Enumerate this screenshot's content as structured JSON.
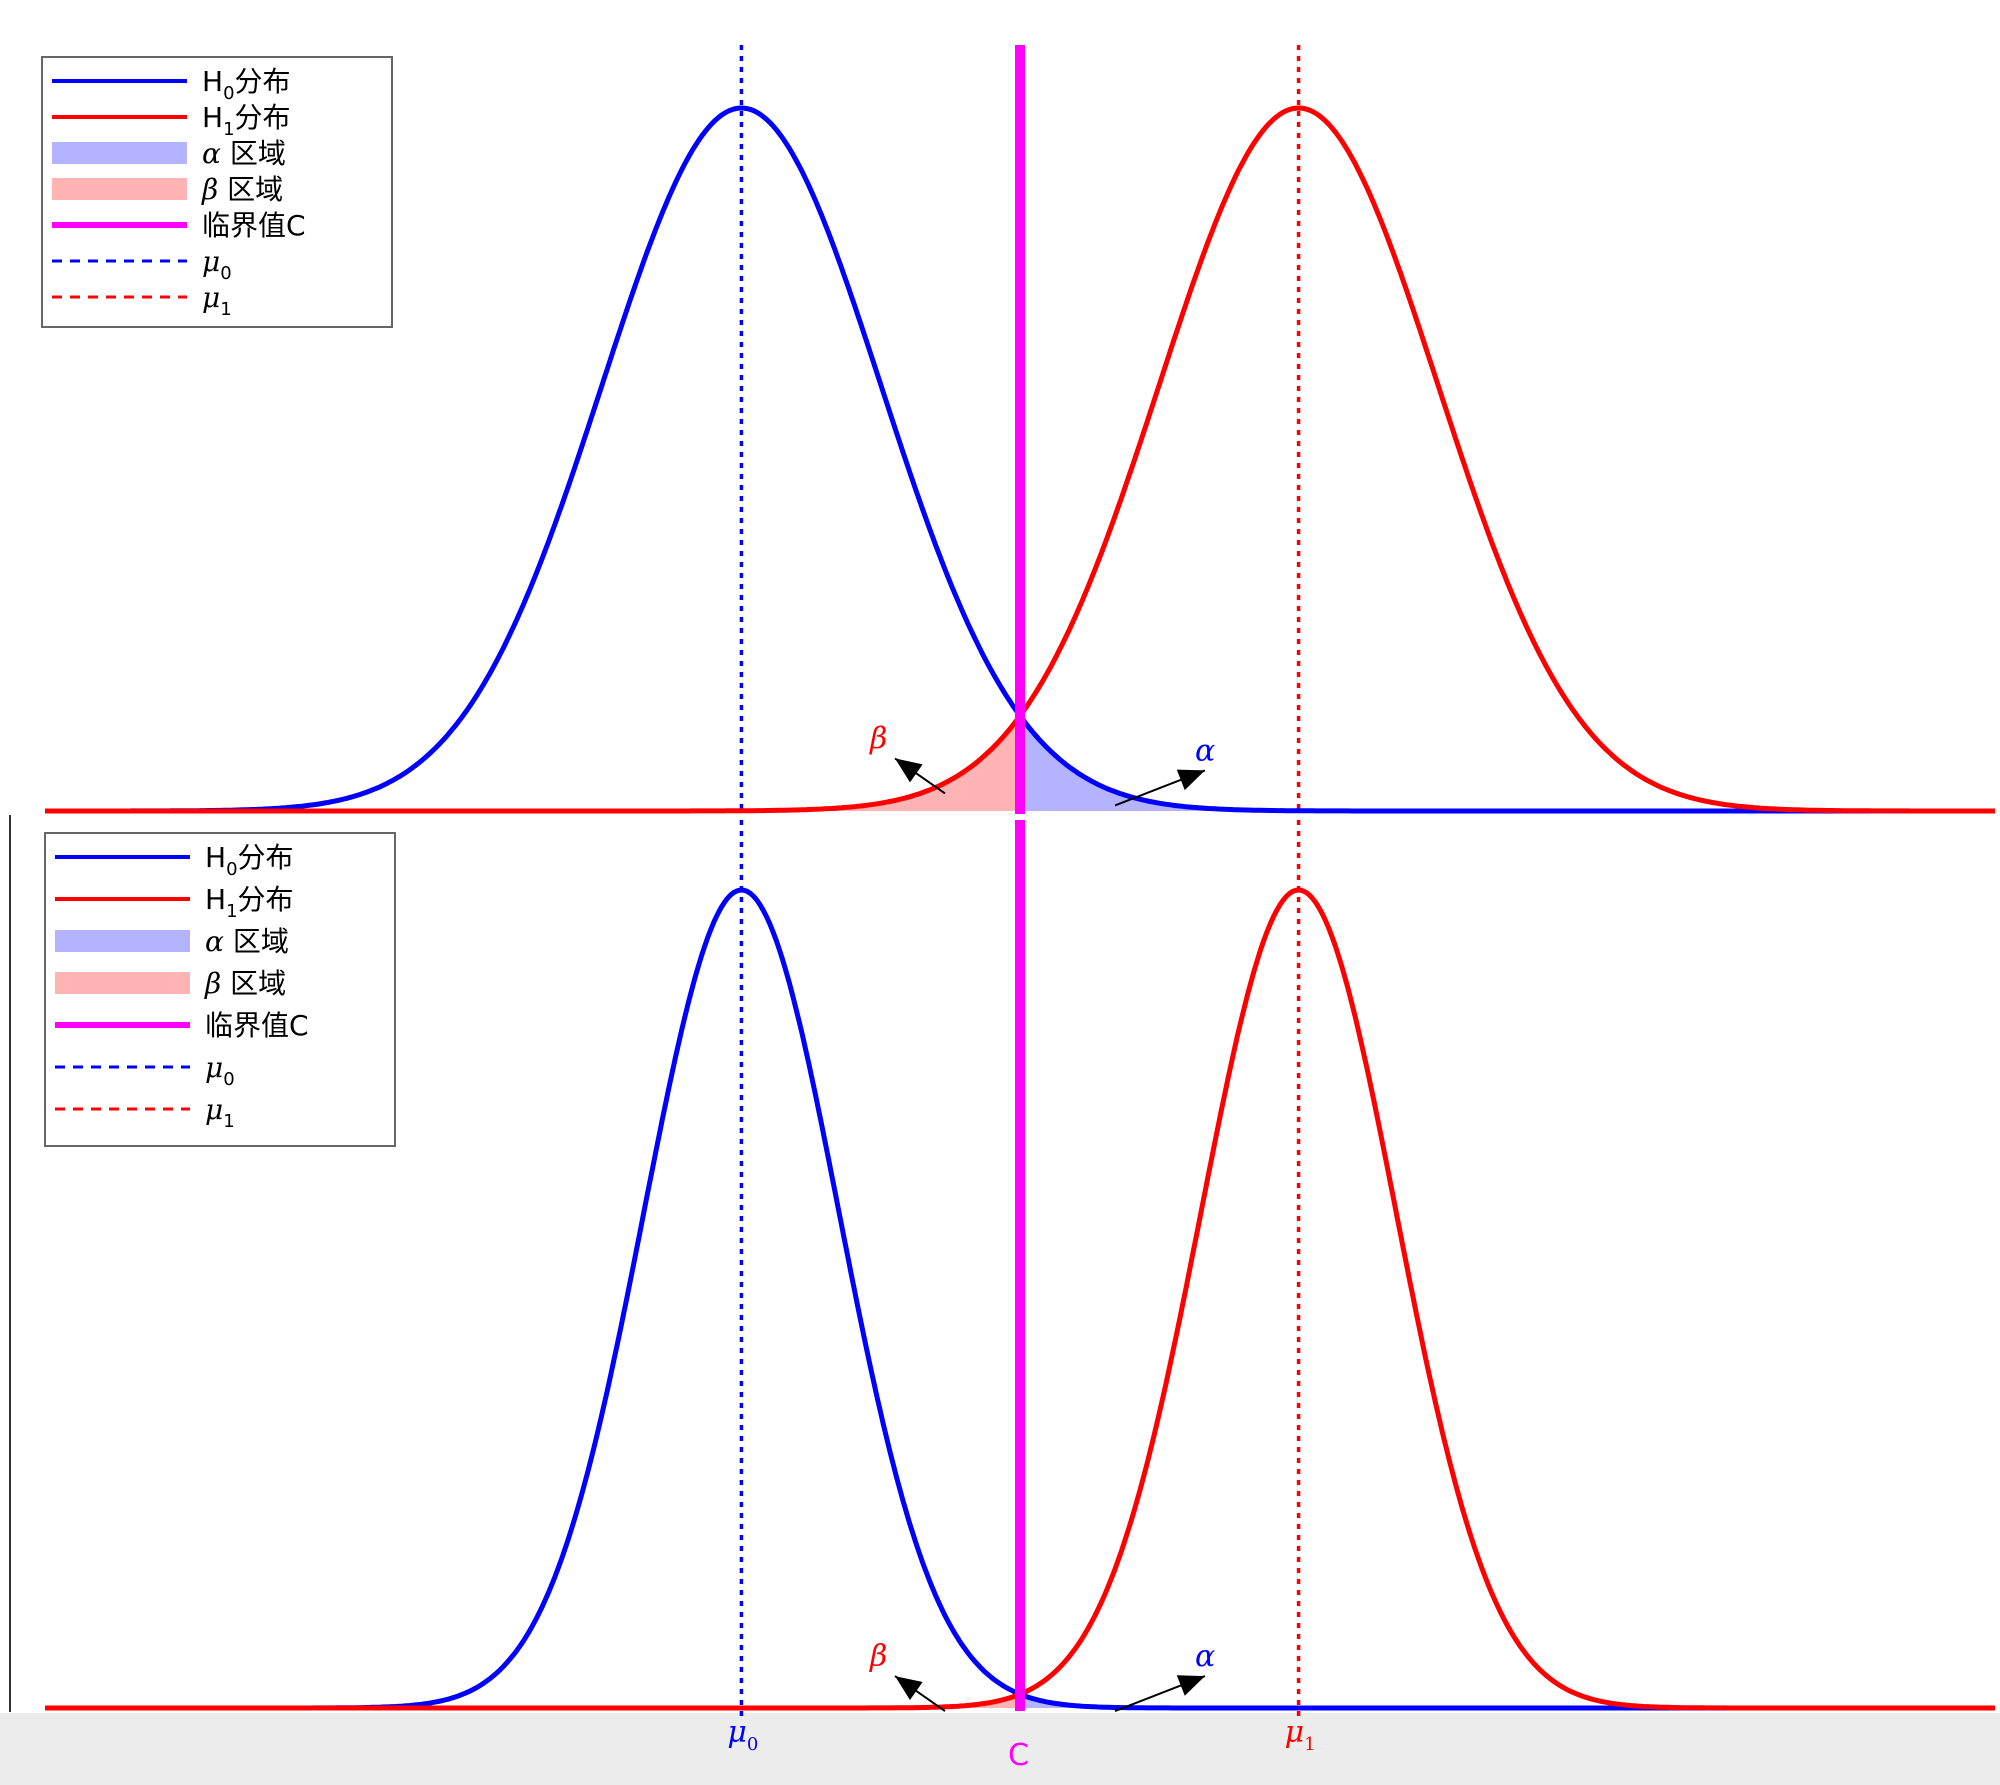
{
  "chart_data": [
    {
      "type": "line",
      "panel": "top",
      "series": [
        {
          "name": "H0分布",
          "kind": "normal_pdf",
          "mean": 0,
          "sd": 1,
          "color": "#0000ff"
        },
        {
          "name": "H1分布",
          "kind": "normal_pdf",
          "mean": 4,
          "sd": 1,
          "color": "#ff0000"
        }
      ],
      "critical_value_C": 2,
      "shaded_regions": [
        {
          "name": "α 区域",
          "from": 2,
          "to": 4,
          "under": "H0分布",
          "color": "#b3b3ff"
        },
        {
          "name": "β 区域",
          "from": 0,
          "to": 2,
          "under": "H1分布",
          "color": "#ffb3b3"
        }
      ],
      "mean_lines": [
        {
          "name": "μ0",
          "x": 0,
          "color": "#0000ff",
          "style": "dotted"
        },
        {
          "name": "μ1",
          "x": 4,
          "color": "#ff0000",
          "style": "dotted"
        }
      ],
      "annotations": [
        {
          "text": "β",
          "color": "#ff0000"
        },
        {
          "text": "α",
          "color": "#0000ff"
        }
      ],
      "xlim": [
        -5,
        9
      ],
      "legend": "top-left",
      "grid": false
    },
    {
      "type": "line",
      "panel": "bottom",
      "series": [
        {
          "name": "H0分布",
          "kind": "normal_pdf",
          "mean": 0,
          "sd": 0.7,
          "color": "#0000ff"
        },
        {
          "name": "H1分布",
          "kind": "normal_pdf",
          "mean": 4,
          "sd": 0.7,
          "color": "#ff0000"
        }
      ],
      "critical_value_C": 2,
      "shaded_regions": [
        {
          "name": "α 区域",
          "from": 2,
          "to": 3,
          "under": "H0分布",
          "color": "#b3b3ff"
        },
        {
          "name": "β 区域",
          "from": 1,
          "to": 2,
          "under": "H1分布",
          "color": "#ffb3b3"
        }
      ],
      "mean_lines": [
        {
          "name": "μ0",
          "x": 0,
          "color": "#0000ff",
          "style": "dotted"
        },
        {
          "name": "μ1",
          "x": 4,
          "color": "#ff0000",
          "style": "dotted"
        }
      ],
      "annotations": [
        {
          "text": "β",
          "color": "#ff0000"
        },
        {
          "text": "α",
          "color": "#0000ff"
        }
      ],
      "xlim": [
        -5,
        9
      ],
      "legend": "top-left",
      "grid": false
    }
  ],
  "legend_items": [
    {
      "key": "h0",
      "base": "H",
      "sub": "0",
      "suffix": "分布",
      "color": "#0000ff",
      "style": "line"
    },
    {
      "key": "h1",
      "base": "H",
      "sub": "1",
      "suffix": "分布",
      "color": "#ff0000",
      "style": "line"
    },
    {
      "key": "alpha",
      "base": "α",
      "sub": "",
      "suffix": " 区域",
      "color": "#b3b3ff",
      "style": "patch"
    },
    {
      "key": "beta",
      "base": "β",
      "sub": "",
      "suffix": " 区域",
      "color": "#ffb3b3",
      "style": "patch"
    },
    {
      "key": "crit",
      "base": "临界值C",
      "sub": "",
      "suffix": "",
      "color": "#ff00ff",
      "style": "thick"
    },
    {
      "key": "mu0",
      "base": "μ",
      "sub": "0",
      "suffix": "",
      "color": "#0000ff",
      "style": "dashed"
    },
    {
      "key": "mu1",
      "base": "μ",
      "sub": "1",
      "suffix": "",
      "color": "#ff0000",
      "style": "dashed"
    }
  ],
  "x_tick_labels": {
    "mu0": {
      "base": "μ",
      "sub": "0"
    },
    "mu1": {
      "base": "μ",
      "sub": "1"
    },
    "c": "C"
  },
  "colors": {
    "h0": "#0000ff",
    "h1": "#ff0000",
    "critical": "#ff00ff",
    "alpha_fill": "#b3b3ff",
    "beta_fill": "#ffb3b3"
  }
}
